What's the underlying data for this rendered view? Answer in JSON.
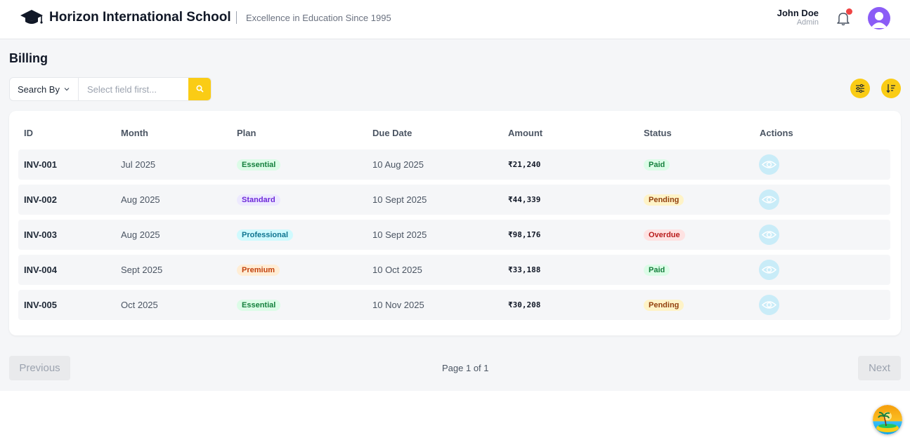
{
  "header": {
    "school_name": "Horizon International School",
    "tagline": "Excellence in Education Since 1995",
    "user_name": "John Doe",
    "user_role": "Admin",
    "logo_icon": "graduation-cap-icon",
    "notification_icon": "bell-icon"
  },
  "page": {
    "title": "Billing"
  },
  "search": {
    "search_by_label": "Search By",
    "placeholder": "Select field first...",
    "value": ""
  },
  "table": {
    "columns": [
      "ID",
      "Month",
      "Plan",
      "Due Date",
      "Amount",
      "Status",
      "Actions"
    ],
    "rows": [
      {
        "id": "INV-001",
        "month": "Jul 2025",
        "plan": "Essential",
        "due_date": "10 Aug 2025",
        "amount": "₹21,240",
        "status": "Paid"
      },
      {
        "id": "INV-002",
        "month": "Aug 2025",
        "plan": "Standard",
        "due_date": "10 Sept 2025",
        "amount": "₹44,339",
        "status": "Pending"
      },
      {
        "id": "INV-003",
        "month": "Aug 2025",
        "plan": "Professional",
        "due_date": "10 Sept 2025",
        "amount": "₹98,176",
        "status": "Overdue"
      },
      {
        "id": "INV-004",
        "month": "Sept 2025",
        "plan": "Premium",
        "due_date": "10 Oct 2025",
        "amount": "₹33,188",
        "status": "Paid"
      },
      {
        "id": "INV-005",
        "month": "Oct 2025",
        "plan": "Essential",
        "due_date": "10 Nov 2025",
        "amount": "₹30,208",
        "status": "Pending"
      }
    ]
  },
  "pagination": {
    "previous_label": "Previous",
    "next_label": "Next",
    "page_info": "Page 1 of 1"
  },
  "colors": {
    "accent": "#facc15",
    "avatar": "#8b5cf6",
    "notification_dot": "#ef4444",
    "plan_essential": "#dcfce7",
    "plan_standard": "#ede9fe",
    "plan_professional": "#cffafe",
    "plan_premium": "#ffedd5",
    "status_paid": "#dcfce7",
    "status_pending": "#fef3c7",
    "status_overdue": "#fee2e2"
  }
}
